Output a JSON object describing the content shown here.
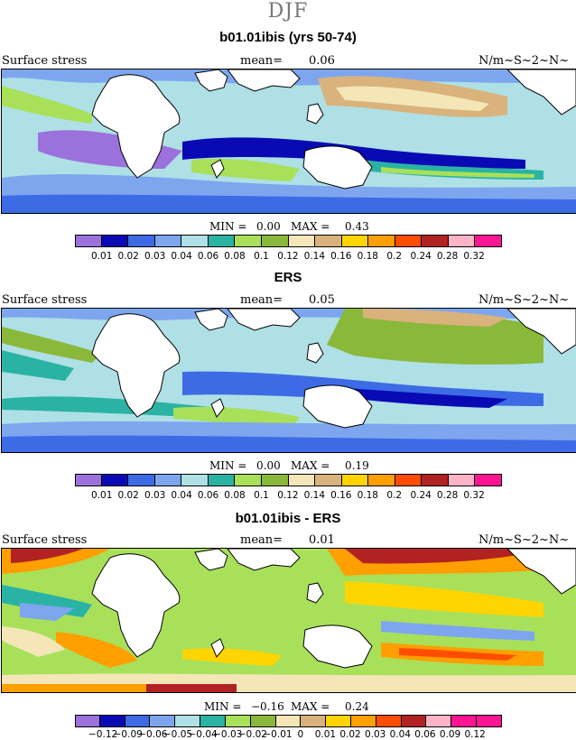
{
  "supertitle": "DJF",
  "variable_label": "Surface stress",
  "units": "N/m~S~2~N~",
  "panels": [
    {
      "title": "b01.01ibis (yrs 50-74)",
      "mean_label": "mean=",
      "mean_value": "0.06",
      "min_label": "MIN =",
      "min_value": "0.00",
      "max_label": "MAX =",
      "max_value": "0.43",
      "tick_labels": [
        "0.01",
        "0.02",
        "0.03",
        "0.04",
        "0.06",
        "0.08",
        "0.1",
        "0.12",
        "0.14",
        "0.16",
        "0.18",
        "0.2",
        "0.24",
        "0.28",
        "0.32"
      ],
      "colors": [
        "#9b72dc",
        "#0a0ab4",
        "#3d6be6",
        "#7ea6ef",
        "#aee0e6",
        "#2ab3a4",
        "#a8e05a",
        "#8ab83a",
        "#f5e6b8",
        "#d9b27c",
        "#ffd400",
        "#ff9f00",
        "#ff4d00",
        "#b22222",
        "#ffb3c6",
        "#ff1493"
      ]
    },
    {
      "title": "ERS",
      "mean_label": "mean=",
      "mean_value": "0.05",
      "min_label": "MIN =",
      "min_value": "0.00",
      "max_label": "MAX =",
      "max_value": "0.19",
      "tick_labels": [
        "0.01",
        "0.02",
        "0.03",
        "0.04",
        "0.06",
        "0.08",
        "0.1",
        "0.12",
        "0.14",
        "0.16",
        "0.18",
        "0.2",
        "0.24",
        "0.28",
        "0.32"
      ],
      "colors": [
        "#9b72dc",
        "#0a0ab4",
        "#3d6be6",
        "#7ea6ef",
        "#aee0e6",
        "#2ab3a4",
        "#a8e05a",
        "#8ab83a",
        "#f5e6b8",
        "#d9b27c",
        "#ffd400",
        "#ff9f00",
        "#ff4d00",
        "#b22222",
        "#ffb3c6",
        "#ff1493"
      ]
    },
    {
      "title": "b01.01ibis - ERS",
      "mean_label": "mean=",
      "mean_value": "0.01",
      "min_label": "MIN =",
      "min_value": "−0.16",
      "max_label": "MAX =",
      "max_value": "0.24",
      "tick_labels": [
        "−0.12",
        "−0.09",
        "−0.06",
        "−0.05",
        "−0.04",
        "−0.03",
        "−0.02",
        "−0.01",
        "0",
        "0.01",
        "0.02",
        "0.03",
        "0.04",
        "0.06",
        "0.09",
        "0.12"
      ],
      "colors": [
        "#9b72dc",
        "#0a0ab4",
        "#3d6be6",
        "#7ea6ef",
        "#aee0e6",
        "#2ab3a4",
        "#a8e05a",
        "#8ab83a",
        "#f5e6b8",
        "#d9b27c",
        "#ffd400",
        "#ff9f00",
        "#ff4d00",
        "#b22222",
        "#ffb3c6",
        "#ff1493",
        "#ff1493"
      ]
    }
  ]
}
